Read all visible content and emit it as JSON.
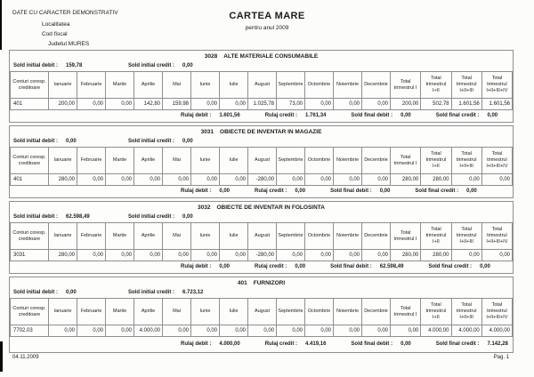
{
  "page": {
    "header_note": "DATE CU CARACTER DEMONSTRATIV",
    "field_localitatea": "Localitatea",
    "field_cod_fiscal": "Cod fiscal",
    "field_judet": "Judetul MURES",
    "title": "CARTEA MARE",
    "subtitle": "pentru anul 2009",
    "footer_date": "04.11.2009",
    "footer_page": "Pag. 1"
  },
  "labels": {
    "sold_initial_debit": "Sold initial debit :",
    "sold_initial_credit": "Sold initial credit :",
    "rulaj_debit": "Rulaj debit :",
    "rulaj_credit": "Rulaj credit :",
    "sold_final_debit": "Sold final debit :",
    "sold_final_credit": "Sold final credit :"
  },
  "table_headers": [
    "Conturi coresp. creditoare",
    "Ianuarie",
    "Februarie",
    "Martie",
    "Aprilie",
    "Mai",
    "Iunie",
    "Iulie",
    "August",
    "Septembrie",
    "Octombrie",
    "Noiembrie",
    "Decembrie",
    "Total trimestrul I",
    "Total trimestrul I+II",
    "Total trimestrul I+II+III",
    "Total trimestrul I+II+III+IV"
  ],
  "sections": [
    {
      "account": "3028",
      "name": "ALTE MATERIALE CONSUMABILE",
      "sold_initial_debit": "159,78",
      "sold_initial_credit": "0,00",
      "rows": [
        [
          "401",
          "200,00",
          "0,00",
          "0,00",
          "142,80",
          "159,98",
          "0,00",
          "0,00",
          "1.025,78",
          "73,00",
          "0,00",
          "0,00",
          "0,00",
          "200,00",
          "502,78",
          "1.601,56",
          "1.601,56"
        ]
      ],
      "rulaj_debit": "1.601,56",
      "rulaj_credit": "1.761,34",
      "sold_final_debit": "0,00",
      "sold_final_credit": "0,00"
    },
    {
      "account": "3031",
      "name": "OBIECTE DE INVENTAR IN MAGAZIE",
      "sold_initial_debit": "0,00",
      "sold_initial_credit": "0,00",
      "rows": [
        [
          "401",
          "280,00",
          "0,00",
          "0,00",
          "0,00",
          "0,00",
          "0,00",
          "0,00",
          "-280,00",
          "0,00",
          "0,00",
          "0,00",
          "0,00",
          "280,00",
          "280,00",
          "0,00",
          "0,00"
        ]
      ],
      "rulaj_debit": "0,00",
      "rulaj_credit": "0,00",
      "sold_final_debit": "0,00",
      "sold_final_credit": "0,00"
    },
    {
      "account": "3032",
      "name": "OBIECTE DE INVENTAR IN FOLOSINTA",
      "sold_initial_debit": "62.598,49",
      "sold_initial_credit": "0,00",
      "rows": [
        [
          "3031",
          "280,00",
          "0,00",
          "0,00",
          "0,00",
          "0,00",
          "0,00",
          "0,00",
          "-280,00",
          "0,00",
          "0,00",
          "0,00",
          "0,00",
          "280,00",
          "280,00",
          "0,00",
          "0,00"
        ]
      ],
      "rulaj_debit": "0,00",
      "rulaj_credit": "0,00",
      "sold_final_debit": "62.598,49",
      "sold_final_credit": "0,00"
    },
    {
      "account": "401",
      "name": "FURNIZORI",
      "sold_initial_debit": "0,00",
      "sold_initial_credit": "6.723,12",
      "rows": [
        [
          "7702.03",
          "0,00",
          "0,00",
          "0,00",
          "4.000,00",
          "0,00",
          "0,00",
          "0,00",
          "0,00",
          "0,00",
          "0,00",
          "0,00",
          "0,00",
          "0,00",
          "4.000,00",
          "4.000,00",
          "4.000,00"
        ]
      ],
      "rulaj_debit": "4.000,00",
      "rulaj_credit": "4.419,16",
      "sold_final_debit": "0,00",
      "sold_final_credit": "7.142,28"
    }
  ]
}
